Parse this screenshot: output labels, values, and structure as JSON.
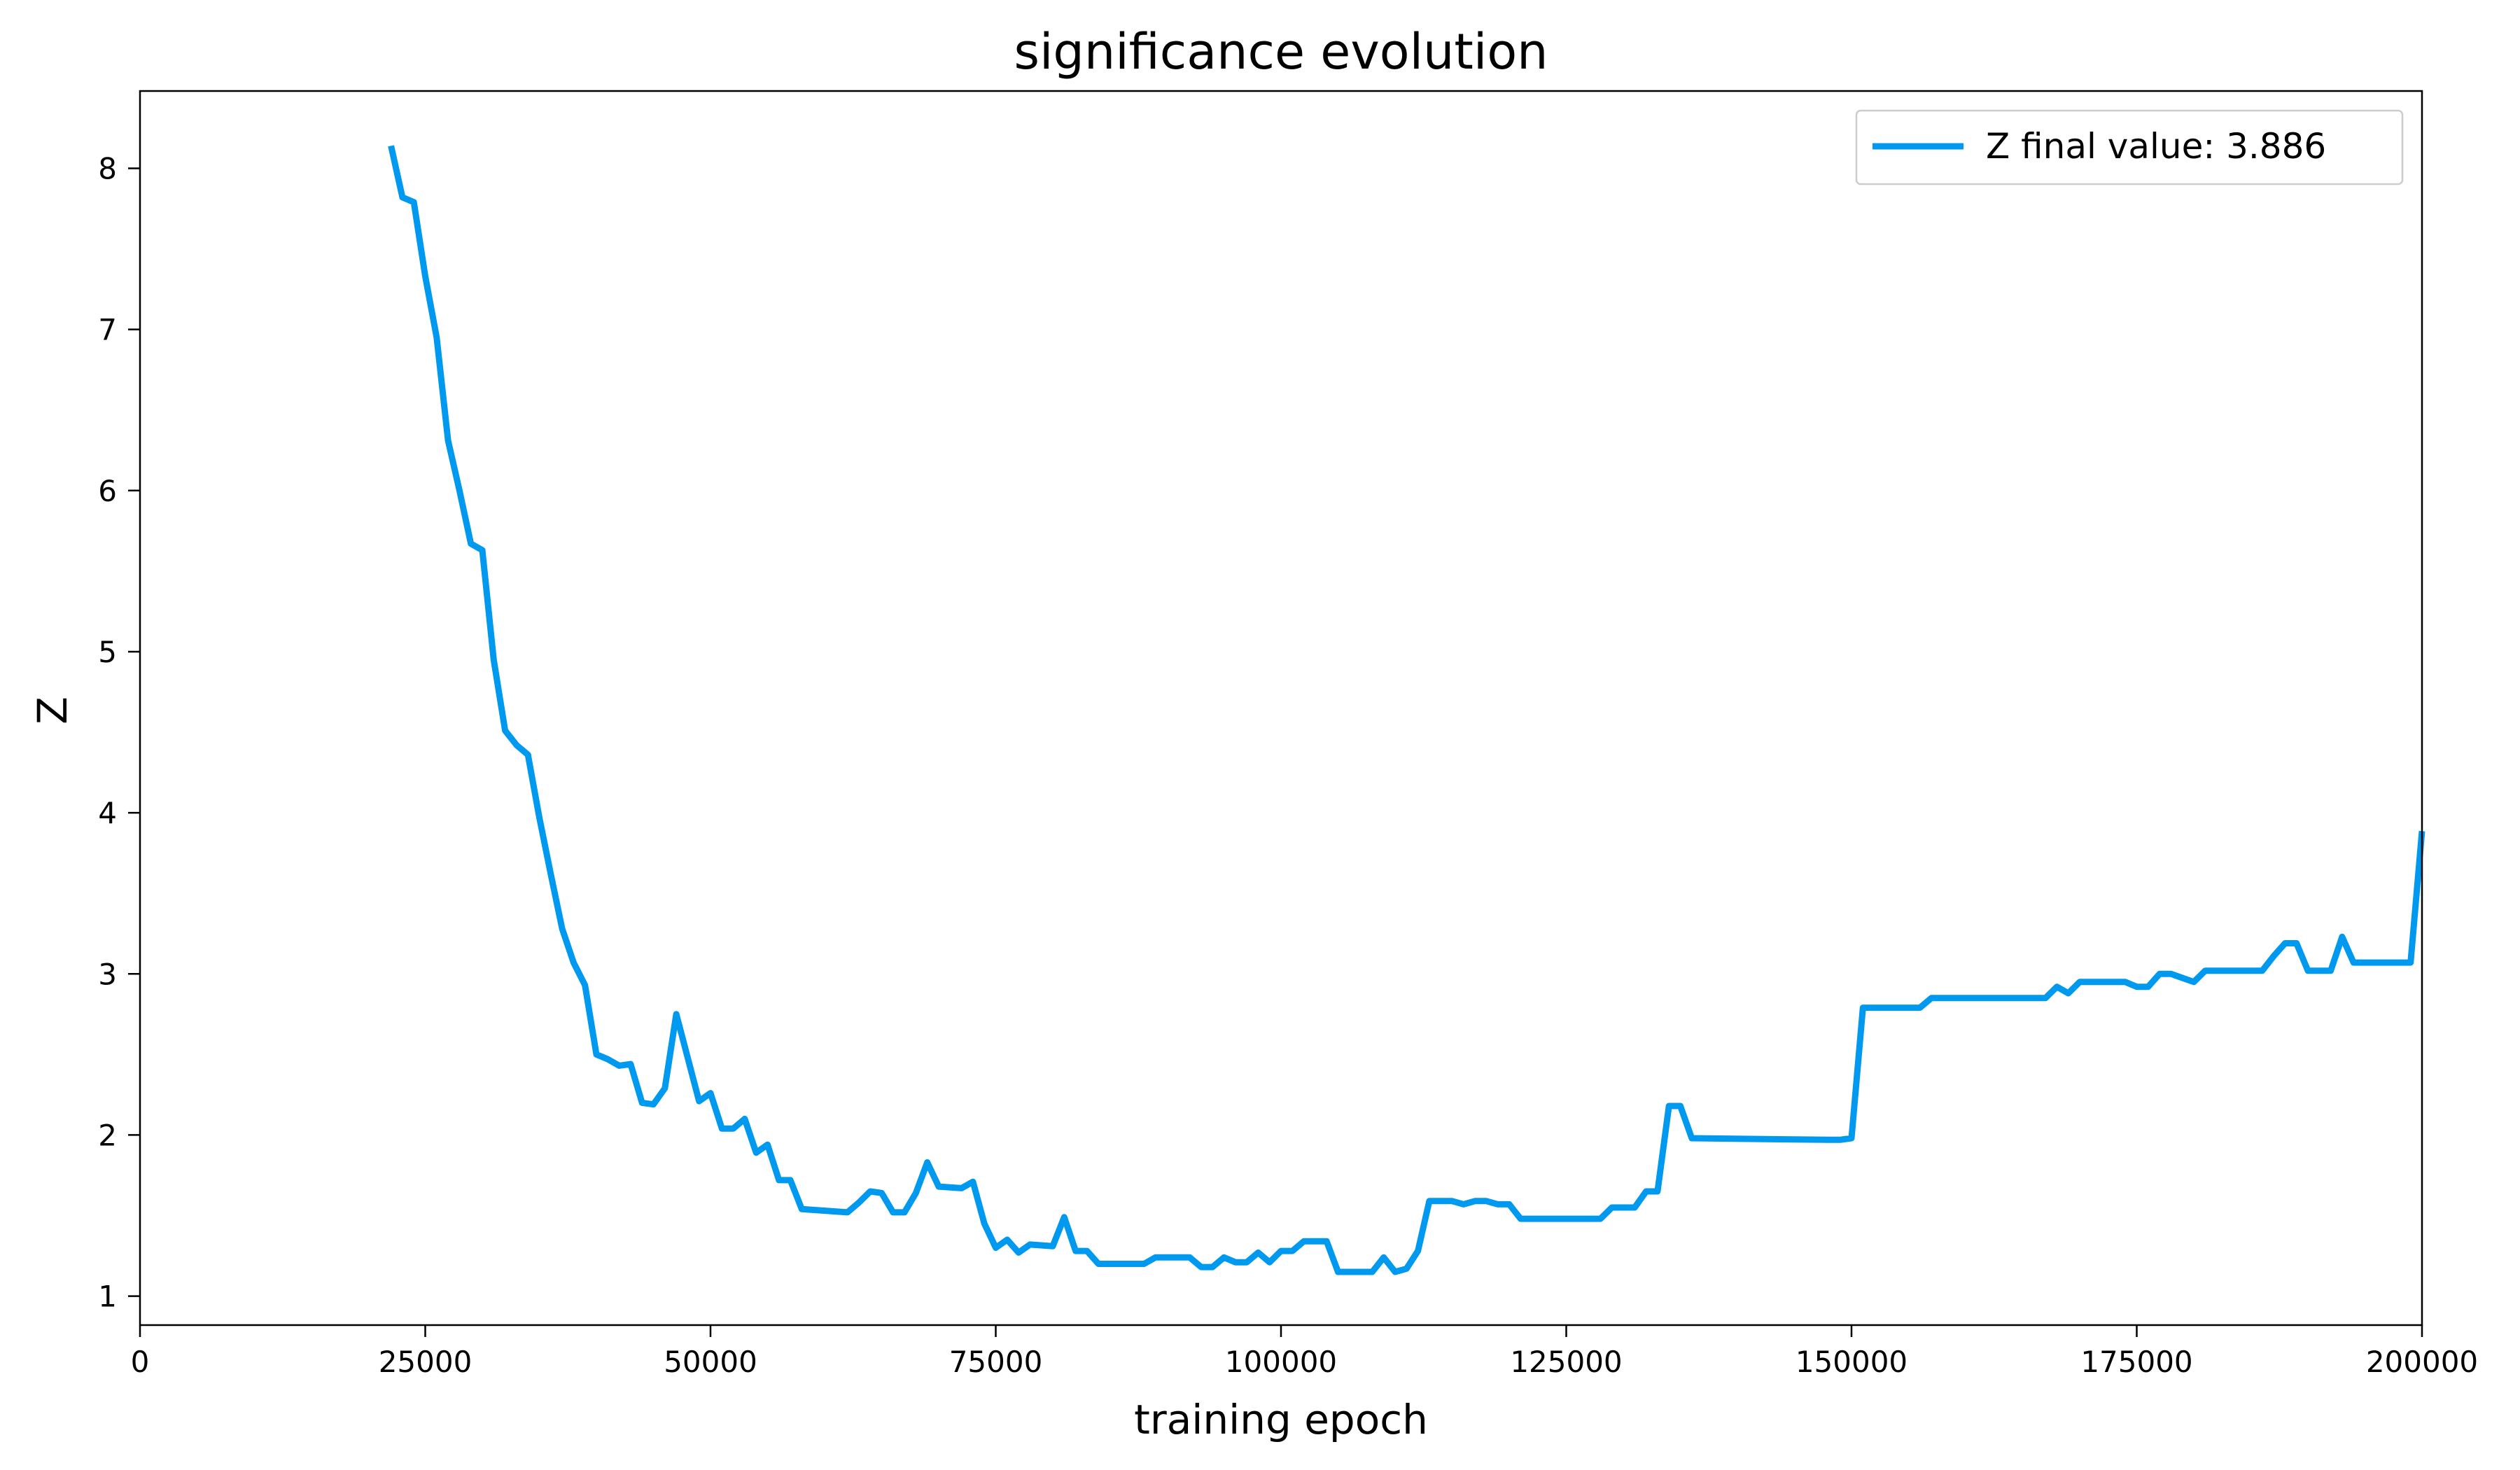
{
  "chart_data": {
    "type": "line",
    "title": "significance evolution",
    "xlabel": "training epoch",
    "ylabel": "Z",
    "xlim": [
      0,
      200000
    ],
    "ylim": [
      0.82,
      8.48
    ],
    "xticks": [
      0,
      25000,
      50000,
      75000,
      100000,
      125000,
      150000,
      175000,
      200000
    ],
    "yticks": [
      1,
      2,
      3,
      4,
      5,
      6,
      7,
      8
    ],
    "grid": false,
    "legend_position": "top-right",
    "colors": {
      "series": "#0099f0",
      "axes": "#000000",
      "background": "#ffffff"
    },
    "series": [
      {
        "name": "Z final value: 3.886",
        "points": [
          [
            22000,
            8.14
          ],
          [
            23000,
            7.82
          ],
          [
            24000,
            7.79
          ],
          [
            25000,
            7.33
          ],
          [
            26000,
            6.95
          ],
          [
            27000,
            6.31
          ],
          [
            28000,
            6.0
          ],
          [
            29000,
            5.67
          ],
          [
            30000,
            5.63
          ],
          [
            31000,
            4.95
          ],
          [
            32000,
            4.51
          ],
          [
            33000,
            4.42
          ],
          [
            34000,
            4.36
          ],
          [
            35000,
            3.97
          ],
          [
            36000,
            3.62
          ],
          [
            37000,
            3.28
          ],
          [
            38000,
            3.07
          ],
          [
            39000,
            2.93
          ],
          [
            40000,
            2.5
          ],
          [
            41000,
            2.47
          ],
          [
            42000,
            2.43
          ],
          [
            43000,
            2.44
          ],
          [
            44000,
            2.2
          ],
          [
            45000,
            2.19
          ],
          [
            46000,
            2.29
          ],
          [
            47000,
            2.75
          ],
          [
            48000,
            2.48
          ],
          [
            49000,
            2.21
          ],
          [
            50000,
            2.26
          ],
          [
            51000,
            2.04
          ],
          [
            52000,
            2.04
          ],
          [
            53000,
            2.1
          ],
          [
            54000,
            1.89
          ],
          [
            55000,
            1.94
          ],
          [
            56000,
            1.72
          ],
          [
            57000,
            1.72
          ],
          [
            58000,
            1.54
          ],
          [
            62000,
            1.52
          ],
          [
            63000,
            1.58
          ],
          [
            64000,
            1.65
          ],
          [
            65000,
            1.64
          ],
          [
            66000,
            1.52
          ],
          [
            67000,
            1.52
          ],
          [
            68000,
            1.64
          ],
          [
            69000,
            1.83
          ],
          [
            70000,
            1.68
          ],
          [
            72000,
            1.67
          ],
          [
            73000,
            1.71
          ],
          [
            74000,
            1.45
          ],
          [
            75000,
            1.3
          ],
          [
            76000,
            1.35
          ],
          [
            77000,
            1.27
          ],
          [
            78000,
            1.32
          ],
          [
            80000,
            1.31
          ],
          [
            81000,
            1.49
          ],
          [
            82000,
            1.28
          ],
          [
            83000,
            1.28
          ],
          [
            84000,
            1.2
          ],
          [
            88000,
            1.2
          ],
          [
            89000,
            1.24
          ],
          [
            92000,
            1.24
          ],
          [
            93000,
            1.18
          ],
          [
            94000,
            1.18
          ],
          [
            95000,
            1.24
          ],
          [
            96000,
            1.21
          ],
          [
            97000,
            1.21
          ],
          [
            98000,
            1.27
          ],
          [
            99000,
            1.21
          ],
          [
            100000,
            1.28
          ],
          [
            101000,
            1.28
          ],
          [
            102000,
            1.34
          ],
          [
            104000,
            1.34
          ],
          [
            105000,
            1.15
          ],
          [
            108000,
            1.15
          ],
          [
            109000,
            1.24
          ],
          [
            110000,
            1.15
          ],
          [
            111000,
            1.17
          ],
          [
            112000,
            1.28
          ],
          [
            113000,
            1.59
          ],
          [
            115000,
            1.59
          ],
          [
            116000,
            1.57
          ],
          [
            117000,
            1.59
          ],
          [
            118000,
            1.59
          ],
          [
            119000,
            1.57
          ],
          [
            120000,
            1.57
          ],
          [
            121000,
            1.48
          ],
          [
            128000,
            1.48
          ],
          [
            129000,
            1.55
          ],
          [
            131000,
            1.55
          ],
          [
            132000,
            1.65
          ],
          [
            133000,
            1.65
          ],
          [
            134000,
            2.18
          ],
          [
            135000,
            2.18
          ],
          [
            136000,
            1.98
          ],
          [
            148000,
            1.97
          ],
          [
            149000,
            1.97
          ],
          [
            150000,
            1.98
          ],
          [
            151000,
            2.79
          ],
          [
            156000,
            2.79
          ],
          [
            157000,
            2.85
          ],
          [
            167000,
            2.85
          ],
          [
            168000,
            2.92
          ],
          [
            169000,
            2.88
          ],
          [
            170000,
            2.95
          ],
          [
            174000,
            2.95
          ],
          [
            175000,
            2.92
          ],
          [
            176000,
            2.92
          ],
          [
            177000,
            3.0
          ],
          [
            178000,
            3.0
          ],
          [
            180000,
            2.95
          ],
          [
            181000,
            3.02
          ],
          [
            186000,
            3.02
          ],
          [
            187000,
            3.11
          ],
          [
            188000,
            3.19
          ],
          [
            189000,
            3.19
          ],
          [
            190000,
            3.02
          ],
          [
            192000,
            3.02
          ],
          [
            193000,
            3.23
          ],
          [
            194000,
            3.07
          ],
          [
            199000,
            3.07
          ],
          [
            200000,
            3.886
          ]
        ]
      }
    ]
  }
}
